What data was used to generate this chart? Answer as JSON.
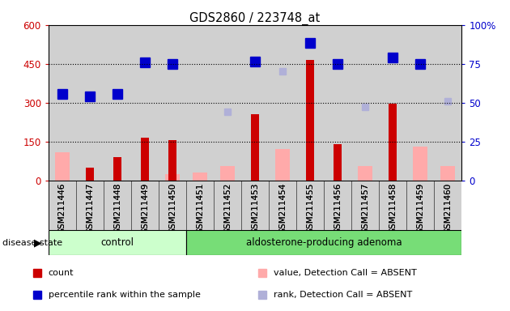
{
  "title": "GDS2860 / 223748_at",
  "samples": [
    "GSM211446",
    "GSM211447",
    "GSM211448",
    "GSM211449",
    "GSM211450",
    "GSM211451",
    "GSM211452",
    "GSM211453",
    "GSM211454",
    "GSM211455",
    "GSM211456",
    "GSM211457",
    "GSM211458",
    "GSM211459",
    "GSM211460"
  ],
  "count_values": [
    null,
    50,
    90,
    165,
    155,
    null,
    null,
    255,
    null,
    465,
    140,
    null,
    295,
    null,
    null
  ],
  "rank_values": [
    335,
    325,
    335,
    455,
    450,
    null,
    null,
    460,
    null,
    530,
    450,
    null,
    475,
    450,
    null
  ],
  "absent_value_values": [
    110,
    null,
    null,
    null,
    25,
    30,
    55,
    null,
    120,
    null,
    null,
    55,
    null,
    130,
    55
  ],
  "absent_rank_values": [
    330,
    null,
    null,
    null,
    null,
    null,
    265,
    null,
    420,
    null,
    null,
    285,
    null,
    null,
    305
  ],
  "control_count": 5,
  "ylim_left": [
    0,
    600
  ],
  "ylim_right": [
    0,
    100
  ],
  "yticks_left": [
    0,
    150,
    300,
    450,
    600
  ],
  "yticks_right": [
    0,
    25,
    50,
    75,
    100
  ],
  "ytick_labels_left": [
    "0",
    "150",
    "300",
    "450",
    "600"
  ],
  "ytick_labels_right": [
    "0",
    "25",
    "50",
    "75",
    "100%"
  ],
  "color_count": "#cc0000",
  "color_rank": "#0000cc",
  "color_absent_value": "#ffaaaa",
  "color_absent_rank": "#b0b0d8",
  "color_plot_bg": "#d0d0d0",
  "color_control_bg": "#ccffcc",
  "color_adenoma_bg": "#77dd77",
  "color_label_left": "#cc0000",
  "color_label_right": "#0000cc",
  "disease_label": "disease state",
  "group1_label": "control",
  "group2_label": "aldosterone-producing adenoma",
  "legend_entries": [
    "count",
    "percentile rank within the sample",
    "value, Detection Call = ABSENT",
    "rank, Detection Call = ABSENT"
  ],
  "legend_colors": [
    "#cc0000",
    "#0000cc",
    "#ffaaaa",
    "#b0b0d8"
  ]
}
